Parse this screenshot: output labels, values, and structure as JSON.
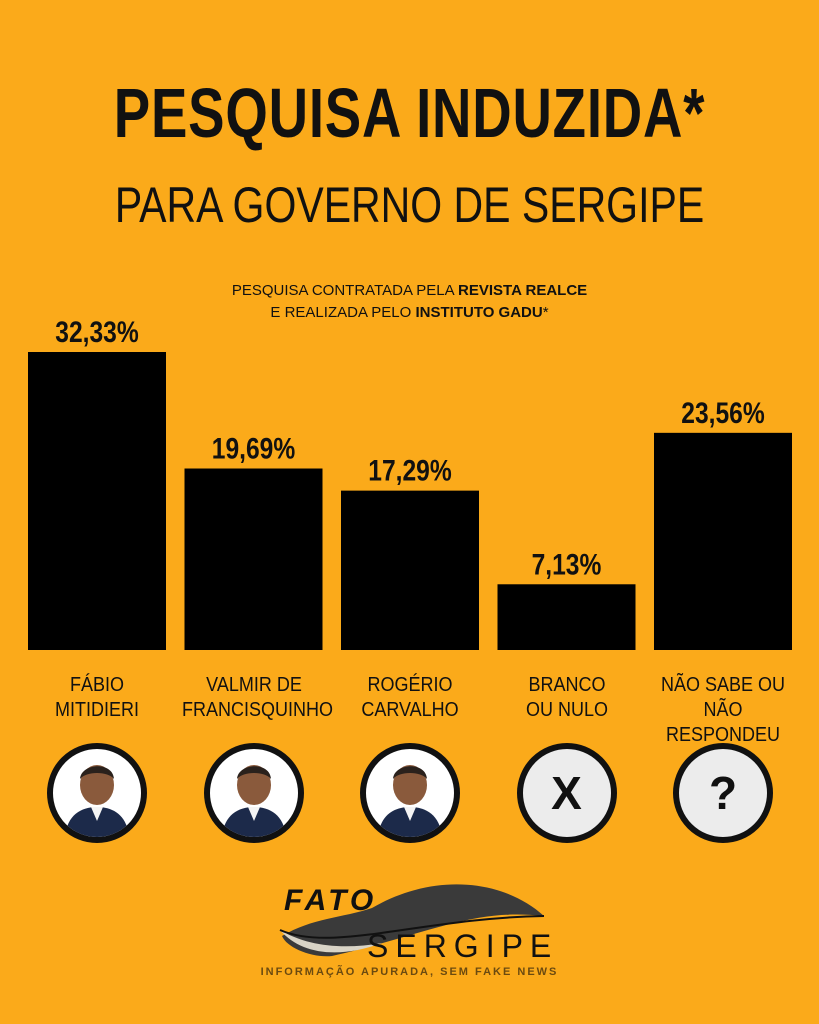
{
  "header": {
    "title": "PESQUISA INDUZIDA*",
    "subtitle": "PARA GOVERNO DE SERGIPE"
  },
  "source": {
    "line1_prefix": "PESQUISA CONTRATADA PELA ",
    "line1_bold": "REVISTA REALCE",
    "line2_prefix": "E REALIZADA PELO ",
    "line2_bold": "INSTITUTO GADU",
    "line2_suffix": "*"
  },
  "chart_data": {
    "type": "bar",
    "categories": [
      "FÁBIO MITIDIERI",
      "VALMIR DE FRANCISQUINHO",
      "ROGÉRIO CARVALHO",
      "BRANCO OU NULO",
      "NÃO SABE OU NÃO RESPONDEU"
    ],
    "category_lines": [
      [
        "FÁBIO",
        "MITIDIERI"
      ],
      [
        "VALMIR DE",
        "FRANCISQUINHO"
      ],
      [
        "ROGÉRIO",
        "CARVALHO"
      ],
      [
        "BRANCO",
        "OU NULO"
      ],
      [
        "NÃO SABE OU",
        "NÃO RESPONDEU"
      ]
    ],
    "values": [
      32.33,
      19.69,
      17.29,
      7.13,
      23.56
    ],
    "data_labels": [
      "32,33%",
      "19,69%",
      "17,29%",
      "7,13%",
      "23,56%"
    ],
    "ylim": [
      0,
      32.33
    ],
    "bar_color": "#000000",
    "grid": false
  },
  "avatars": [
    {
      "type": "photo",
      "icon": "person-photo-icon"
    },
    {
      "type": "photo",
      "icon": "person-photo-icon"
    },
    {
      "type": "photo",
      "icon": "person-photo-icon"
    },
    {
      "type": "symbol",
      "icon": "x-icon",
      "symbol": "X"
    },
    {
      "type": "symbol",
      "icon": "question-mark-icon",
      "symbol": "?"
    }
  ],
  "logo": {
    "top_word": "FATO",
    "bottom_word": "SERGIPE",
    "tagline": "INFORMAÇÃO APURADA, SEM FAKE NEWS"
  },
  "colors": {
    "background": "#FBAA1A",
    "bar": "#000000",
    "text": "#111111"
  }
}
